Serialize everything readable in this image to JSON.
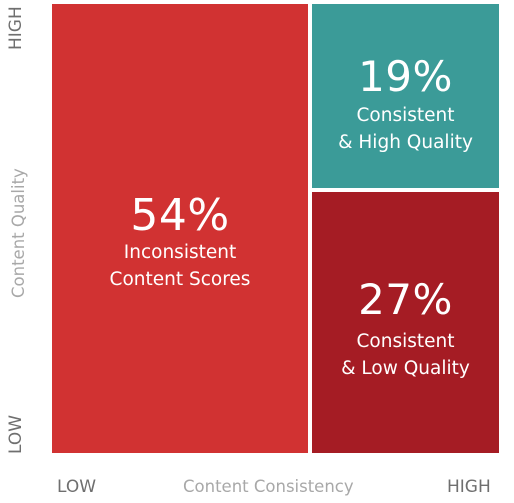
{
  "chart_data": {
    "type": "heatmap",
    "xlabel": "Content Consistency",
    "ylabel": "Content Quality",
    "x_ticks": [
      "LOW",
      "HIGH"
    ],
    "y_ticks": [
      "LOW",
      "HIGH"
    ],
    "cells": [
      {
        "id": "inconsistent",
        "value": 54,
        "value_label": "54%",
        "label_lines": [
          "Inconsistent",
          "Content Scores"
        ],
        "color": "#d13232"
      },
      {
        "id": "consistent_high",
        "value": 19,
        "value_label": "19%",
        "label_lines": [
          "Consistent",
          "& High Quality"
        ],
        "color": "#3b9b98"
      },
      {
        "id": "consistent_low",
        "value": 27,
        "value_label": "27%",
        "label_lines": [
          "Consistent",
          "& Low Quality"
        ],
        "color": "#a51c24"
      }
    ]
  }
}
